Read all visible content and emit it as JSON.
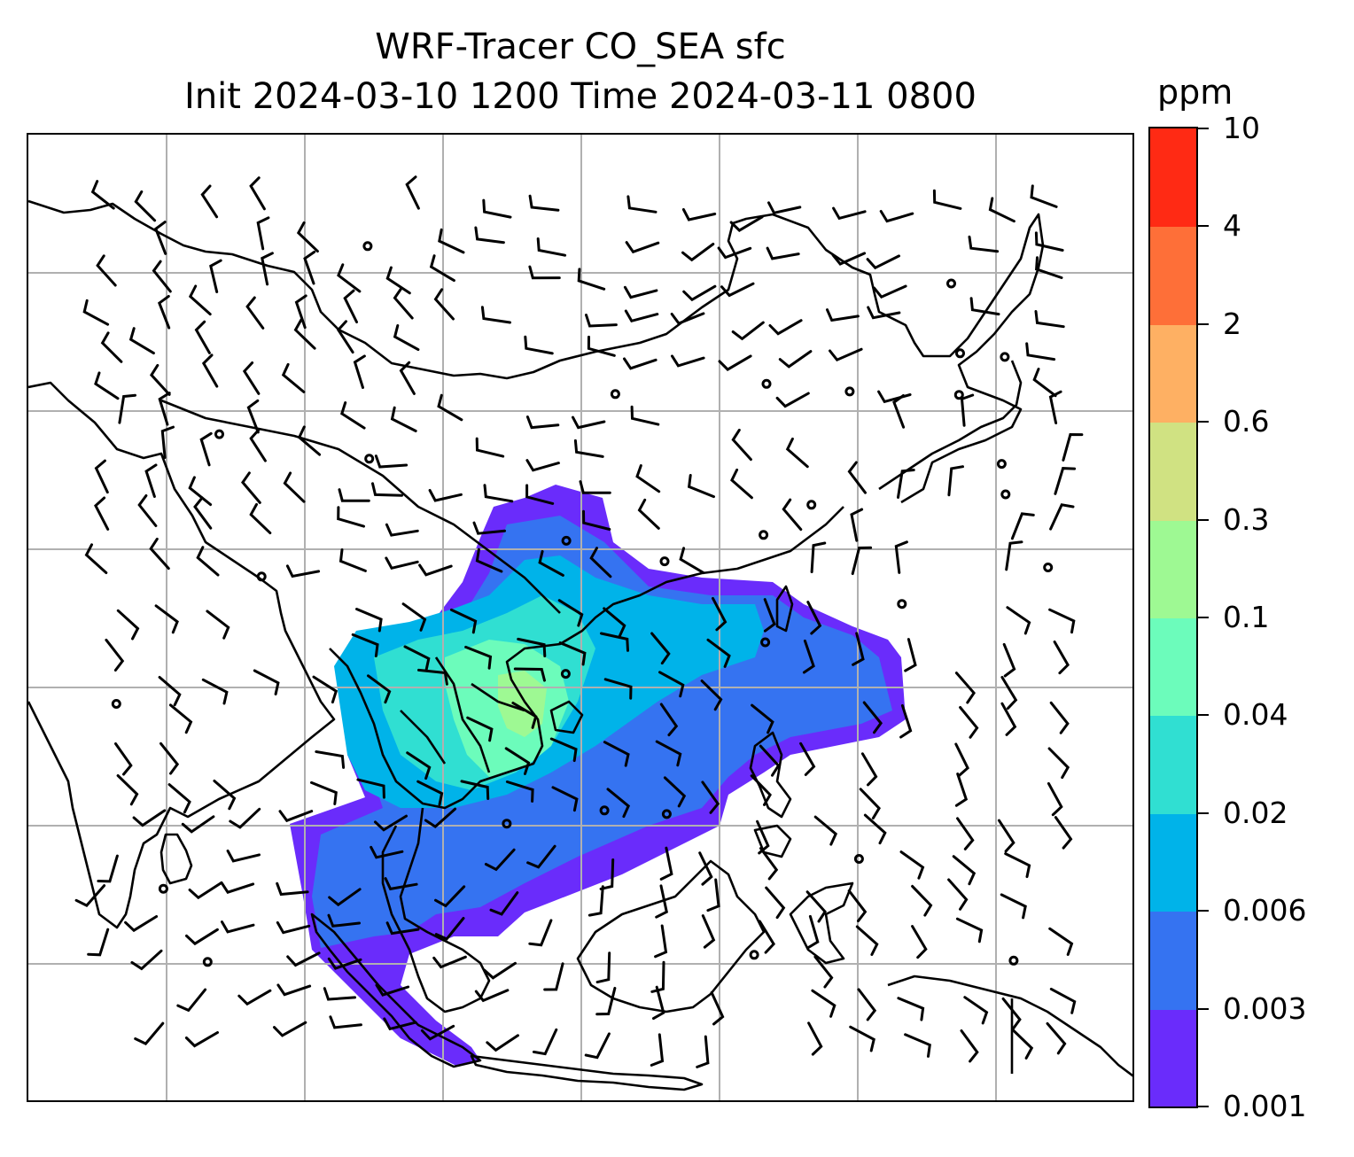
{
  "title": {
    "line1": "WRF-Tracer CO_SEA sfc",
    "line2": "Init 2024-03-10 1200 Time 2024-03-11 0800"
  },
  "colorbar": {
    "unit": "ppm",
    "levels": [
      "0.001",
      "0.003",
      "0.006",
      "0.02",
      "0.04",
      "0.1",
      "0.3",
      "0.6",
      "2",
      "4",
      "10"
    ],
    "colors": [
      "#6a2cfb",
      "#3573f1",
      "#00b3e9",
      "#30dfd2",
      "#6cfcbb",
      "#9ef993",
      "#d0e282",
      "#feb063",
      "#fe6f38",
      "#ff2a14"
    ]
  },
  "map": {
    "gridlines": true,
    "gridline_color": "#b0b0b0",
    "coastline_color": "#000000",
    "wind_barbs": true
  }
}
